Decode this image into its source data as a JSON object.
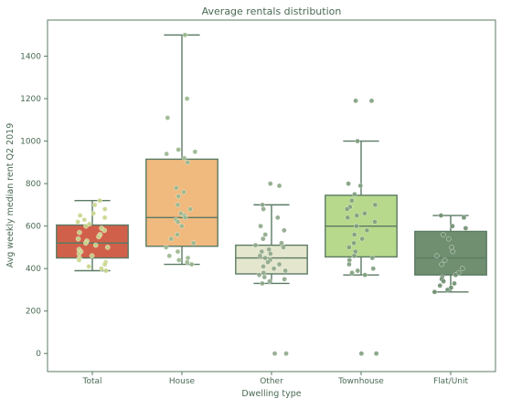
{
  "chart_data": {
    "type": "box",
    "title": "Average rentals distribution",
    "xlabel": "Dwelling type",
    "ylabel": "Avg weekly median rent Q2 2019",
    "ylim": [
      -85,
      1570
    ],
    "yticks": [
      0,
      200,
      400,
      600,
      800,
      1000,
      1200,
      1400
    ],
    "grid": false,
    "legend": "none",
    "categories": [
      "Total",
      "House",
      "Other",
      "Townhouse",
      "Flat/Unit"
    ],
    "boxes": [
      {
        "category": "Total",
        "whisker_low": 390,
        "q1": 450,
        "median": 520,
        "q3": 605,
        "whisker_high": 720,
        "color": "#d1604a"
      },
      {
        "category": "House",
        "whisker_low": 420,
        "q1": 505,
        "median": 640,
        "q3": 915,
        "whisker_high": 1500,
        "color": "#f0b97e"
      },
      {
        "category": "Other",
        "whisker_low": 330,
        "q1": 375,
        "median": 450,
        "q3": 510,
        "whisker_high": 700,
        "color": "#e4e7cd"
      },
      {
        "category": "Townhouse",
        "whisker_low": 370,
        "q1": 455,
        "median": 600,
        "q3": 745,
        "whisker_high": 1000,
        "color": "#b7d98b"
      },
      {
        "category": "Flat/Unit",
        "whisker_low": 290,
        "q1": 370,
        "median": 450,
        "q3": 575,
        "whisker_high": 650,
        "color": "#6f8f70"
      }
    ],
    "points": [
      {
        "category": "Total",
        "color": "#c8d78a",
        "values": [
          720,
          700,
          680,
          660,
          650,
          640,
          630,
          620,
          610,
          600,
          590,
          580,
          570,
          560,
          550,
          540,
          530,
          520,
          510,
          500,
          490,
          480,
          470,
          460,
          450,
          440,
          430,
          420,
          410,
          400,
          390
        ]
      },
      {
        "category": "House",
        "color": "#9ab88e",
        "values": [
          1500,
          1200,
          1110,
          960,
          950,
          940,
          920,
          900,
          780,
          760,
          740,
          700,
          680,
          660,
          650,
          640,
          630,
          620,
          600,
          560,
          540,
          520,
          500,
          480,
          460,
          450,
          440,
          430,
          420
        ]
      },
      {
        "category": "Other",
        "color": "#8fa88a",
        "values": [
          800,
          790,
          700,
          680,
          640,
          600,
          580,
          560,
          540,
          520,
          510,
          500,
          490,
          480,
          470,
          460,
          450,
          440,
          430,
          420,
          410,
          400,
          390,
          380,
          370,
          360,
          350,
          340,
          330,
          0,
          0
        ]
      },
      {
        "category": "Townhouse",
        "color": "#7fa07e",
        "values": [
          1190,
          1190,
          1000,
          800,
          790,
          750,
          720,
          700,
          690,
          680,
          660,
          650,
          640,
          620,
          600,
          580,
          560,
          540,
          520,
          500,
          480,
          460,
          450,
          440,
          420,
          400,
          390,
          380,
          370,
          0,
          0
        ]
      },
      {
        "category": "Flat/Unit",
        "color": "#6f8f70",
        "values": [
          650,
          640,
          600,
          590,
          560,
          540,
          500,
          480,
          460,
          440,
          420,
          400,
          380,
          370,
          360,
          350,
          340,
          330,
          320,
          310,
          300,
          290
        ]
      }
    ]
  },
  "colors": {
    "frame": "#5b7a63",
    "text": "#4a6a54",
    "box_edge": "#5b7a63"
  }
}
